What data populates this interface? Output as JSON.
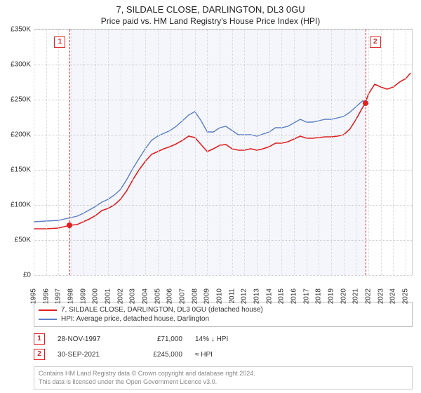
{
  "title_line1": "7, SILDALE CLOSE, DARLINGTON, DL3 0GU",
  "title_line2": "Price paid vs. HM Land Registry's House Price Index (HPI)",
  "chart": {
    "type": "line",
    "background_shaded": "#f4f6fb",
    "background_page": "#ffffff",
    "grid_color": "#c8c8c8",
    "x_years": [
      1995,
      1996,
      1997,
      1998,
      1999,
      2000,
      2001,
      2002,
      2003,
      2004,
      2005,
      2006,
      2007,
      2008,
      2009,
      2010,
      2011,
      2012,
      2013,
      2014,
      2015,
      2016,
      2017,
      2018,
      2019,
      2020,
      2021,
      2022,
      2023,
      2024,
      2025
    ],
    "x_min": 1995.0,
    "x_max": 2025.5,
    "shaded_from": 1997.91,
    "shaded_to": 2021.75,
    "y_min": 0,
    "y_max": 350,
    "y_ticks": [
      0,
      50,
      100,
      150,
      200,
      250,
      300,
      350
    ],
    "y_tick_prefix": "£",
    "y_tick_suffix": "K",
    "axis_fontsize": 10,
    "series": [
      {
        "name": "7, SILDALE CLOSE, DARLINGTON, DL3 0GU (detached house)",
        "color": "#e02020",
        "width": 1.6,
        "points": [
          [
            1995.0,
            66
          ],
          [
            1996.0,
            66
          ],
          [
            1997.0,
            67
          ],
          [
            1997.91,
            71
          ],
          [
            1998.5,
            72
          ],
          [
            1999.0,
            76
          ],
          [
            1999.5,
            80
          ],
          [
            2000.0,
            85
          ],
          [
            2000.5,
            92
          ],
          [
            2001.0,
            95
          ],
          [
            2001.5,
            100
          ],
          [
            2002.0,
            108
          ],
          [
            2002.5,
            120
          ],
          [
            2003.0,
            136
          ],
          [
            2003.5,
            150
          ],
          [
            2004.0,
            162
          ],
          [
            2004.5,
            172
          ],
          [
            2005.0,
            176
          ],
          [
            2005.5,
            180
          ],
          [
            2006.0,
            183
          ],
          [
            2006.5,
            187
          ],
          [
            2007.0,
            192
          ],
          [
            2007.5,
            198
          ],
          [
            2008.0,
            196
          ],
          [
            2008.5,
            186
          ],
          [
            2009.0,
            176
          ],
          [
            2009.5,
            180
          ],
          [
            2010.0,
            185
          ],
          [
            2010.5,
            186
          ],
          [
            2011.0,
            180
          ],
          [
            2011.5,
            178
          ],
          [
            2012.0,
            178
          ],
          [
            2012.5,
            180
          ],
          [
            2013.0,
            178
          ],
          [
            2013.5,
            180
          ],
          [
            2014.0,
            183
          ],
          [
            2014.5,
            188
          ],
          [
            2015.0,
            188
          ],
          [
            2015.5,
            190
          ],
          [
            2016.0,
            194
          ],
          [
            2016.5,
            198
          ],
          [
            2017.0,
            195
          ],
          [
            2017.5,
            195
          ],
          [
            2018.0,
            196
          ],
          [
            2018.5,
            197
          ],
          [
            2019.0,
            197
          ],
          [
            2019.5,
            198
          ],
          [
            2020.0,
            200
          ],
          [
            2020.5,
            208
          ],
          [
            2021.0,
            222
          ],
          [
            2021.5,
            238
          ],
          [
            2021.75,
            245
          ],
          [
            2022.0,
            258
          ],
          [
            2022.5,
            272
          ],
          [
            2023.0,
            268
          ],
          [
            2023.5,
            265
          ],
          [
            2024.0,
            268
          ],
          [
            2024.5,
            275
          ],
          [
            2025.0,
            280
          ],
          [
            2025.4,
            288
          ]
        ]
      },
      {
        "name": "HPI: Average price, detached house, Darlington",
        "color": "#5b7fc7",
        "width": 1.4,
        "points": [
          [
            1995.0,
            76
          ],
          [
            1996.0,
            77
          ],
          [
            1997.0,
            78
          ],
          [
            1998.0,
            82
          ],
          [
            1998.5,
            84
          ],
          [
            1999.0,
            88
          ],
          [
            1999.5,
            93
          ],
          [
            2000.0,
            98
          ],
          [
            2000.5,
            104
          ],
          [
            2001.0,
            108
          ],
          [
            2001.5,
            114
          ],
          [
            2002.0,
            122
          ],
          [
            2002.5,
            136
          ],
          [
            2003.0,
            152
          ],
          [
            2003.5,
            166
          ],
          [
            2004.0,
            180
          ],
          [
            2004.5,
            192
          ],
          [
            2005.0,
            198
          ],
          [
            2005.5,
            202
          ],
          [
            2006.0,
            206
          ],
          [
            2006.5,
            212
          ],
          [
            2007.0,
            220
          ],
          [
            2007.5,
            228
          ],
          [
            2008.0,
            233
          ],
          [
            2008.5,
            220
          ],
          [
            2009.0,
            204
          ],
          [
            2009.5,
            204
          ],
          [
            2010.0,
            210
          ],
          [
            2010.5,
            212
          ],
          [
            2011.0,
            206
          ],
          [
            2011.5,
            200
          ],
          [
            2012.0,
            200
          ],
          [
            2012.5,
            200
          ],
          [
            2013.0,
            198
          ],
          [
            2013.5,
            201
          ],
          [
            2014.0,
            204
          ],
          [
            2014.5,
            210
          ],
          [
            2015.0,
            210
          ],
          [
            2015.5,
            212
          ],
          [
            2016.0,
            217
          ],
          [
            2016.5,
            222
          ],
          [
            2017.0,
            218
          ],
          [
            2017.5,
            218
          ],
          [
            2018.0,
            220
          ],
          [
            2018.5,
            222
          ],
          [
            2019.0,
            222
          ],
          [
            2019.5,
            224
          ],
          [
            2020.0,
            226
          ],
          [
            2020.5,
            232
          ],
          [
            2021.0,
            240
          ],
          [
            2021.5,
            248
          ],
          [
            2021.75,
            248
          ]
        ]
      }
    ],
    "markers": [
      {
        "id": "1",
        "x": 1997.91,
        "y": 71,
        "color": "#e02020"
      },
      {
        "id": "2",
        "x": 2021.75,
        "y": 245,
        "color": "#e02020"
      }
    ]
  },
  "legend": [
    {
      "color": "#e02020",
      "label": "7, SILDALE CLOSE, DARLINGTON, DL3 0GU (detached house)"
    },
    {
      "color": "#5b7fc7",
      "label": "HPI: Average price, detached house, Darlington"
    }
  ],
  "marker_rows": [
    {
      "id": "1",
      "date": "28-NOV-1997",
      "price": "£71,000",
      "rel": "14% ↓ HPI"
    },
    {
      "id": "2",
      "date": "30-SEP-2021",
      "price": "£245,000",
      "rel": "≈ HPI"
    }
  ],
  "footer_line1": "Contains HM Land Registry data © Crown copyright and database right 2024.",
  "footer_line2": "This data is licensed under the Open Government Licence v3.0."
}
